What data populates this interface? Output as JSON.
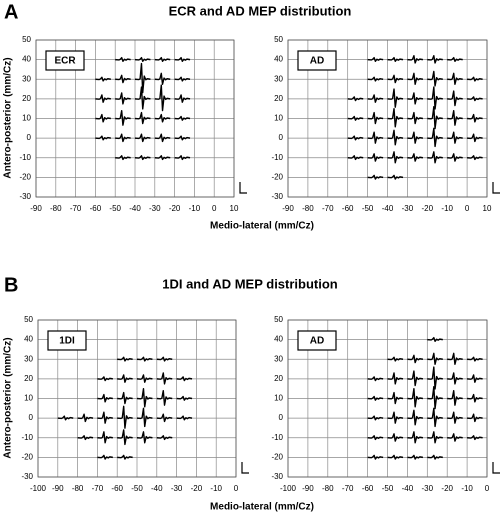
{
  "sections": [
    {
      "letter": "A",
      "title": "ECR and AD MEP distribution",
      "xlabel": "Medio-lateral  (mm/Cz)",
      "ylabel": "Antero-posterior (mm/Cz)"
    },
    {
      "letter": "B",
      "title": "1DI and AD MEP distribution",
      "xlabel": "Medio-lateral  (mm/Cz)",
      "ylabel": "Antero-posterior (mm/Cz)"
    }
  ],
  "chart_data": [
    {
      "type": "waveform",
      "label": "ECR",
      "color": "#000000",
      "grid": true,
      "xlim": [
        -90,
        10
      ],
      "ylim": [
        -30,
        50
      ],
      "xticks": [
        -90,
        -80,
        -70,
        -60,
        -50,
        -40,
        -30,
        -20,
        -10,
        0,
        10
      ],
      "yticks": [
        -30,
        -20,
        -10,
        0,
        10,
        20,
        30,
        40,
        50
      ],
      "x": [
        -50,
        -40,
        -30,
        -20,
        -60,
        -50,
        -40,
        -30,
        -20,
        -60,
        -50,
        -40,
        -30,
        -20,
        -60,
        -50,
        -40,
        -30,
        -20,
        -60,
        -50,
        -40,
        -30,
        -20,
        -50,
        -40,
        -30,
        -20
      ],
      "y": [
        40,
        40,
        40,
        40,
        30,
        30,
        30,
        30,
        30,
        20,
        20,
        20,
        20,
        20,
        10,
        10,
        10,
        10,
        10,
        0,
        0,
        0,
        0,
        0,
        -10,
        -10,
        -10,
        -10
      ],
      "amplitude": [
        1,
        1,
        1,
        1,
        1,
        2,
        8,
        3,
        1,
        2,
        3,
        6,
        7,
        2,
        2,
        4,
        3,
        2,
        1,
        1,
        2,
        2,
        2,
        1,
        1,
        1,
        1,
        1
      ]
    },
    {
      "type": "waveform",
      "label": "AD",
      "color": "#000000",
      "grid": true,
      "xlim": [
        -90,
        10
      ],
      "ylim": [
        -30,
        50
      ],
      "xticks": [
        -90,
        -80,
        -70,
        -60,
        -50,
        -40,
        -30,
        -20,
        -10,
        0,
        10
      ],
      "yticks": [
        -30,
        -20,
        -10,
        0,
        10,
        20,
        30,
        40,
        50
      ],
      "x": [
        -50,
        -40,
        -30,
        -20,
        -10,
        -50,
        -40,
        -30,
        -20,
        -10,
        0,
        -60,
        -50,
        -40,
        -30,
        -20,
        -10,
        0,
        -60,
        -50,
        -40,
        -30,
        -20,
        -10,
        0,
        -60,
        -50,
        -40,
        -30,
        -20,
        -10,
        0,
        -60,
        -50,
        -40,
        -30,
        -20,
        -10,
        0,
        -50,
        -40
      ],
      "y": [
        40,
        40,
        40,
        40,
        40,
        30,
        30,
        30,
        30,
        30,
        30,
        20,
        20,
        20,
        20,
        20,
        20,
        20,
        10,
        10,
        10,
        10,
        10,
        10,
        10,
        0,
        0,
        0,
        0,
        0,
        0,
        0,
        -10,
        -10,
        -10,
        -10,
        -10,
        -10,
        -10,
        -20,
        -20
      ],
      "amplitude": [
        1,
        1,
        2,
        2,
        1,
        1,
        2,
        3,
        4,
        3,
        1,
        1,
        2,
        5,
        3,
        6,
        4,
        1,
        1,
        3,
        5,
        3,
        6,
        4,
        2,
        1,
        3,
        4,
        3,
        5,
        3,
        2,
        1,
        2,
        3,
        2,
        3,
        2,
        1,
        1,
        1
      ]
    },
    {
      "type": "waveform",
      "label": "1DI",
      "color": "#000000",
      "grid": true,
      "xlim": [
        -100,
        0
      ],
      "ylim": [
        -30,
        50
      ],
      "xticks": [
        -100,
        -90,
        -80,
        -70,
        -60,
        -50,
        -40,
        -30,
        -20,
        -10,
        0
      ],
      "yticks": [
        -30,
        -20,
        -10,
        0,
        10,
        20,
        30,
        40,
        50
      ],
      "x": [
        -60,
        -50,
        -40,
        -70,
        -60,
        -50,
        -40,
        -30,
        -70,
        -60,
        -50,
        -40,
        -30,
        -90,
        -80,
        -70,
        -60,
        -50,
        -40,
        -30,
        -80,
        -70,
        -60,
        -50,
        -40,
        -70,
        -60
      ],
      "y": [
        30,
        30,
        30,
        20,
        20,
        20,
        20,
        20,
        10,
        10,
        10,
        10,
        10,
        0,
        0,
        0,
        0,
        0,
        0,
        0,
        -10,
        -10,
        -10,
        -10,
        -10,
        -20,
        -20
      ],
      "amplitude": [
        1,
        1,
        1,
        1,
        2,
        2,
        3,
        1,
        2,
        3,
        5,
        4,
        1,
        1,
        2,
        3,
        6,
        5,
        2,
        1,
        1,
        3,
        4,
        3,
        1,
        1,
        1
      ]
    },
    {
      "type": "waveform",
      "label": "AD",
      "color": "#000000",
      "grid": true,
      "xlim": [
        -100,
        0
      ],
      "ylim": [
        -30,
        50
      ],
      "xticks": [
        -100,
        -90,
        -80,
        -70,
        -60,
        -50,
        -40,
        -30,
        -20,
        -10,
        0
      ],
      "yticks": [
        -30,
        -20,
        -10,
        0,
        10,
        20,
        30,
        40,
        50
      ],
      "x": [
        -30,
        -50,
        -40,
        -30,
        -20,
        -10,
        -60,
        -50,
        -40,
        -30,
        -20,
        -10,
        -60,
        -50,
        -40,
        -30,
        -20,
        -10,
        -60,
        -50,
        -40,
        -30,
        -20,
        -10,
        -60,
        -50,
        -40,
        -30,
        -20,
        -10,
        -60,
        -50,
        -40,
        -30
      ],
      "y": [
        40,
        30,
        30,
        30,
        30,
        30,
        20,
        20,
        20,
        20,
        20,
        20,
        10,
        10,
        10,
        10,
        10,
        10,
        0,
        0,
        0,
        0,
        0,
        0,
        -10,
        -10,
        -10,
        -10,
        -10,
        -10,
        -20,
        -20,
        -20,
        -20
      ],
      "amplitude": [
        1,
        1,
        2,
        3,
        3,
        1,
        1,
        3,
        4,
        6,
        3,
        2,
        1,
        3,
        5,
        6,
        4,
        2,
        1,
        3,
        4,
        5,
        3,
        2,
        1,
        2,
        3,
        3,
        2,
        1,
        1,
        1,
        1,
        1
      ]
    }
  ]
}
